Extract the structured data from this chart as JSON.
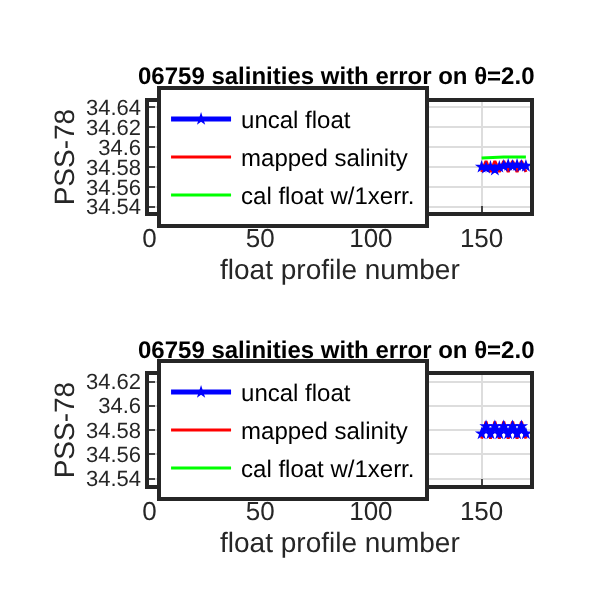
{
  "chart_data": [
    {
      "type": "line",
      "title": "06759 salinities with error on θ=2.0",
      "xlabel": "float profile number",
      "ylabel": "PSS-78",
      "xlim": [
        0,
        172
      ],
      "xticks": [
        0,
        50,
        100,
        150
      ],
      "ylim": [
        34.535,
        34.645
      ],
      "yticks": [
        34.54,
        34.56,
        34.58,
        34.6,
        34.62,
        34.64
      ],
      "grid": true,
      "legend": "left",
      "series": [
        {
          "name": "uncal float",
          "color": "#0000ff",
          "marker": "star",
          "x": [
            150,
            152,
            154,
            156,
            158,
            160,
            162,
            164,
            166,
            168,
            170
          ],
          "values": [
            34.58,
            34.579,
            34.58,
            34.577,
            34.58,
            34.581,
            34.582,
            34.581,
            34.582,
            34.581,
            34.581
          ]
        },
        {
          "name": "mapped salinity",
          "color": "#ff0000",
          "x": [
            150,
            152,
            154,
            156,
            158,
            160,
            162,
            164,
            166,
            168,
            170
          ],
          "values": [
            34.575,
            34.586,
            34.575,
            34.586,
            34.575,
            34.586,
            34.575,
            34.586,
            34.575,
            34.586,
            34.575
          ]
        },
        {
          "name": "cal float w/1xerr.",
          "color": "#00ff00",
          "marker": "none",
          "x": [
            150,
            160,
            170
          ],
          "values": [
            34.589,
            34.59,
            34.59
          ]
        }
      ]
    },
    {
      "type": "line",
      "title": "06759 salinities with error on θ=2.0",
      "xlabel": "float profile number",
      "ylabel": "PSS-78",
      "xlim": [
        0,
        172
      ],
      "xticks": [
        0,
        50,
        100,
        150
      ],
      "ylim": [
        34.535,
        34.625
      ],
      "yticks": [
        34.54,
        34.56,
        34.58,
        34.6,
        34.62
      ],
      "grid": true,
      "legend": "left",
      "series": [
        {
          "name": "uncal float",
          "color": "#0000ff",
          "marker": "star",
          "x": [
            150,
            152,
            154,
            156,
            158,
            160,
            162,
            164,
            166,
            168,
            170
          ],
          "values": [
            34.577,
            34.583,
            34.577,
            34.583,
            34.577,
            34.583,
            34.577,
            34.583,
            34.577,
            34.583,
            34.577
          ]
        },
        {
          "name": "mapped salinity",
          "color": "#ff0000",
          "x": [
            150,
            152,
            154,
            156,
            158,
            160,
            162,
            164,
            166,
            168,
            170
          ],
          "values": [
            34.573,
            34.587,
            34.573,
            34.587,
            34.573,
            34.587,
            34.573,
            34.587,
            34.573,
            34.587,
            34.573
          ]
        },
        {
          "name": "cal float w/1xerr.",
          "color": "#00ff00",
          "values": [
            null
          ]
        }
      ]
    }
  ]
}
